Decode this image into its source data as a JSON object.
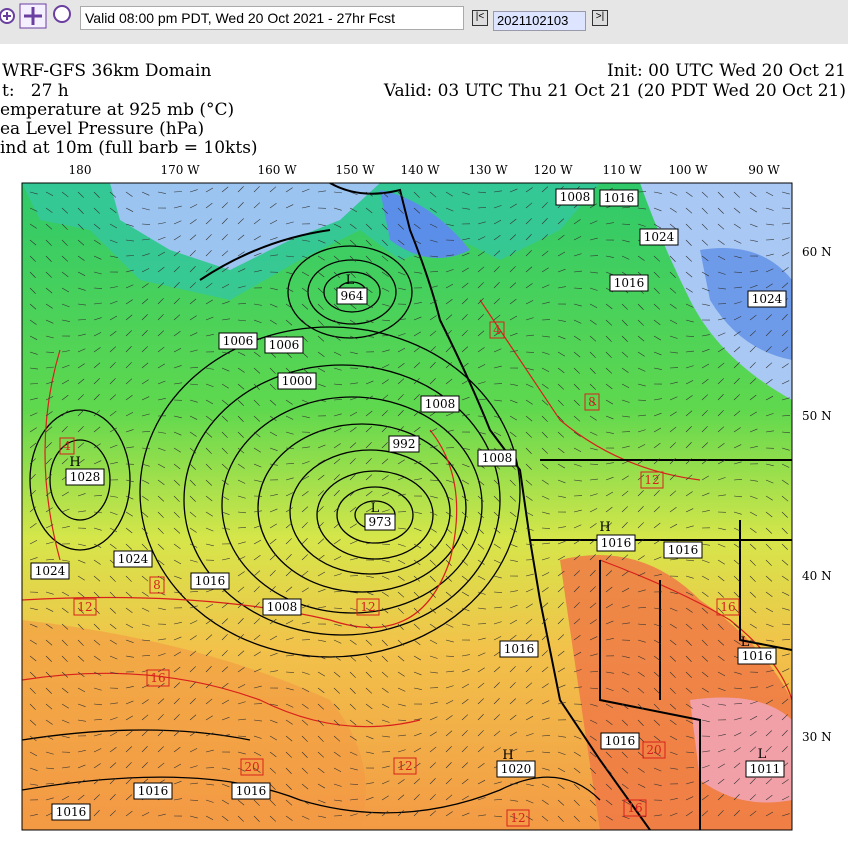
{
  "toolbar": {
    "valid_text": "Valid 08:00 pm PDT, Wed 20 Oct 2021 - 27hr Fcst",
    "run_id": "2021102103"
  },
  "header": {
    "domain": "WRF-GFS 36km Domain",
    "init": "Init: 00 UTC Wed 20 Oct 21",
    "forecast_hour": "t:   27 h",
    "valid": "Valid: 03 UTC Thu 21 Oct 21 (20 PDT Wed 20 Oct 21)",
    "fields": [
      "emperature at 925 mb (°C)",
      "ea Level Pressure (hPa)",
      "ind at 10m (full barb = 10kts)"
    ]
  },
  "map": {
    "lon_labels": [
      "180",
      "170 W",
      "160 W",
      "150 W",
      "140 W",
      "130 W",
      "120 W",
      "110 W",
      "100 W",
      "90 W"
    ],
    "lat_labels": [
      "60 N",
      "50 N",
      "40 N",
      "30 N"
    ],
    "pressure_labels": [
      "964",
      "1006",
      "1006",
      "1000",
      "1008",
      "992",
      "1008",
      "1028",
      "973",
      "1024",
      "1024",
      "1016",
      "1008",
      "1016",
      "1016",
      "1016",
      "1016",
      "1016",
      "1020",
      "1016",
      "1016",
      "1016",
      "1016",
      "1024",
      "1024",
      "1016",
      "1008",
      "1011"
    ],
    "centers": [
      "H",
      "H",
      "H",
      "L",
      "L",
      "L",
      "L"
    ],
    "temperature_labels": [
      "4",
      "12",
      "8",
      "16",
      "20",
      "12",
      "12",
      "16",
      "12",
      "4",
      "8",
      "12",
      "16",
      "20"
    ]
  }
}
